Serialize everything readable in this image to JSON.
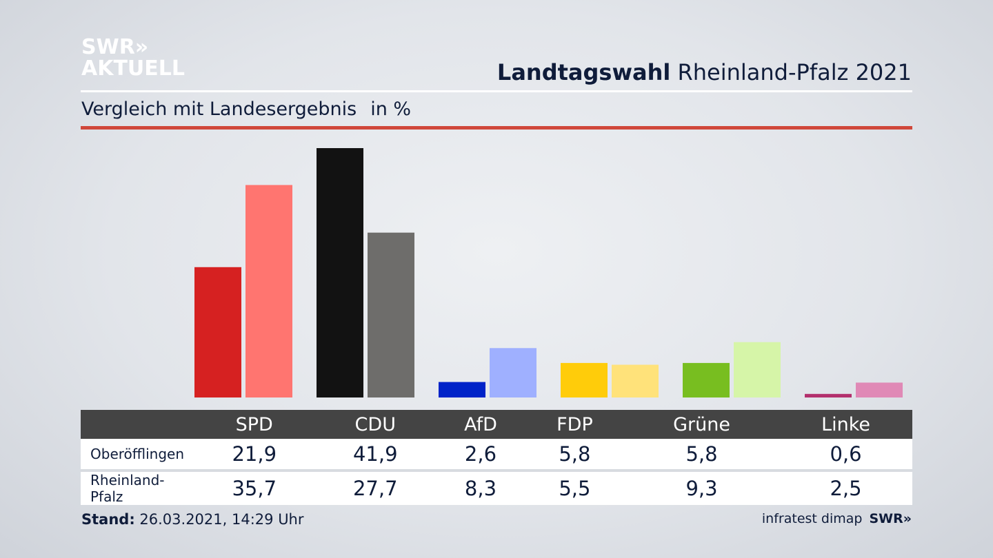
{
  "brand": {
    "line1": "SWR»",
    "line2": "AKTUELL"
  },
  "header": {
    "title_bold": "Landtagswahl",
    "title_rest": "Rheinland-Pfalz 2021"
  },
  "subtitle": {
    "text": "Vergleich mit Landesergebnis",
    "unit": "in %"
  },
  "colors": {
    "accent_red": "#d0473a",
    "table_header": "#444444",
    "SPD": [
      "#d62121",
      "#ff7570"
    ],
    "CDU": [
      "#121212",
      "#6e6d6b"
    ],
    "AfD": [
      "#0023c8",
      "#9fb0ff"
    ],
    "FDP": [
      "#ffcc0a",
      "#ffe27a"
    ],
    "Grüne": [
      "#78be20",
      "#d6f5a8"
    ],
    "Linke": [
      "#b3306d",
      "#e089b6"
    ]
  },
  "chart_data": {
    "type": "bar",
    "categories": [
      "SPD",
      "CDU",
      "AfD",
      "FDP",
      "Grüne",
      "Linke"
    ],
    "series": [
      {
        "name": "Oberöfflingen",
        "values": [
          21.9,
          41.9,
          2.6,
          5.8,
          5.8,
          0.6
        ]
      },
      {
        "name": "Rheinland-Pfalz",
        "values": [
          35.7,
          27.7,
          8.3,
          5.5,
          9.3,
          2.5
        ]
      }
    ],
    "value_labels": [
      [
        "21,9",
        "41,9",
        "2,6",
        "5,8",
        "5,8",
        "0,6"
      ],
      [
        "35,7",
        "27,7",
        "8,3",
        "5,5",
        "9,3",
        "2,5"
      ]
    ],
    "title": "Landtagswahl Rheinland-Pfalz 2021",
    "subtitle": "Vergleich mit Landesergebnis",
    "ylabel": "in %",
    "ylim": [
      0,
      41.9
    ],
    "grid": false
  },
  "footer": {
    "stand_label": "Stand:",
    "stand_value": "26.03.2021, 14:29 Uhr",
    "source": "infratest dimap",
    "source_logo": "SWR»"
  }
}
